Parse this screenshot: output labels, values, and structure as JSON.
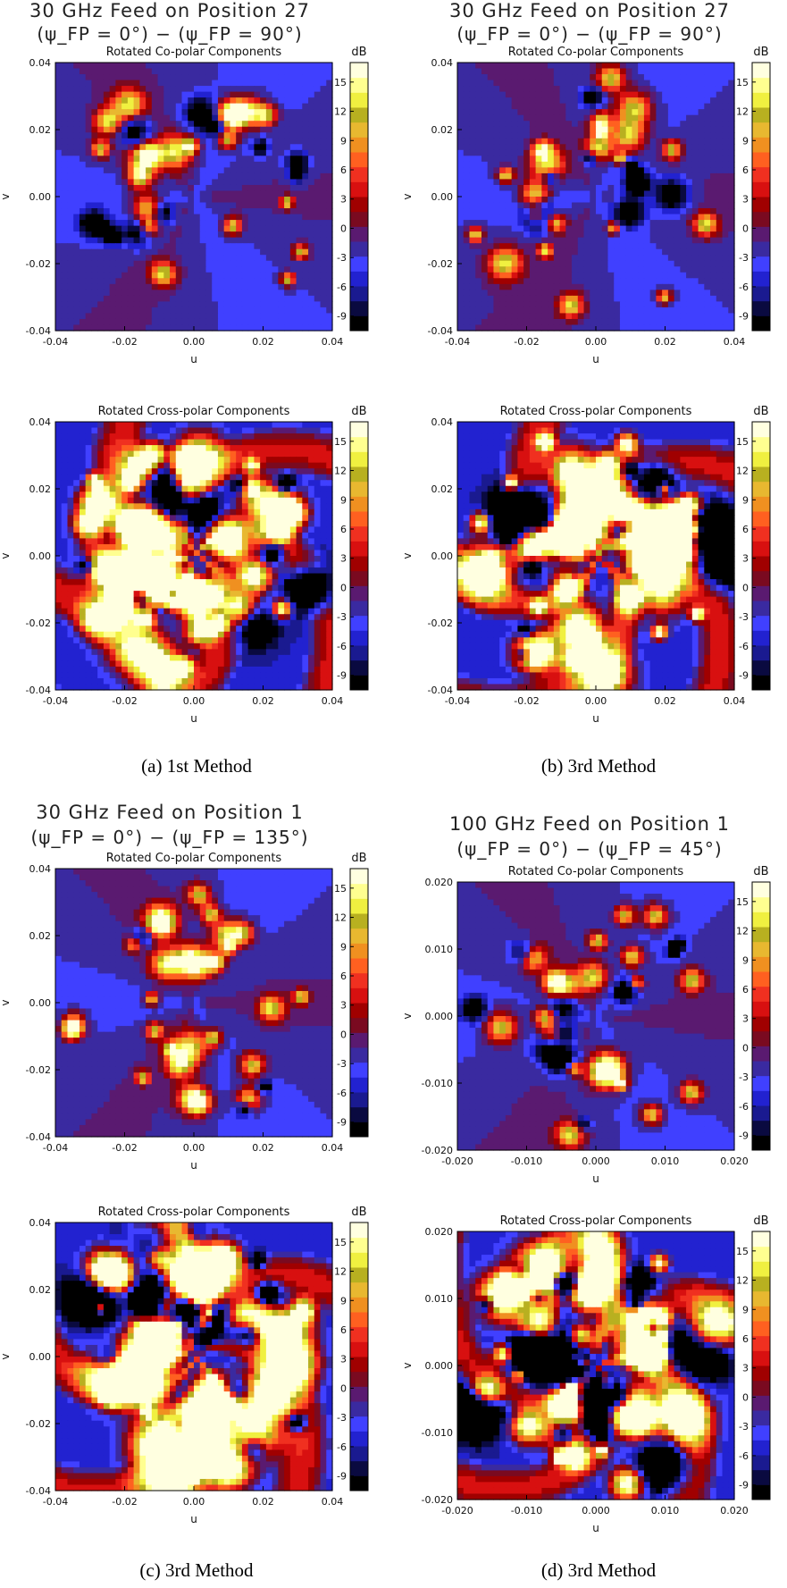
{
  "chart_data": [
    {
      "type": "heatmap",
      "panel": "a",
      "caption": "(a)  1st Method",
      "title_line1": "30 GHz Feed on Position 27",
      "title_line2": "(ψ_FP = 0°) − (ψ_FP = 90°)",
      "colorbar_label": "dB",
      "colorbar_ticks": [
        "15",
        "12",
        "9",
        "6",
        "3",
        "0",
        "-3",
        "-6",
        "-9"
      ],
      "subplots": [
        {
          "title": "Rotated Co-polar Components",
          "xlabel": "u",
          "ylabel": "v",
          "xlim": [
            -0.04,
            0.04
          ],
          "ylim": [
            -0.04,
            0.04
          ],
          "xticks": [
            "-0.04",
            "-0.02",
            "0.00",
            "0.02",
            "0.04"
          ],
          "yticks": [
            "0.04",
            "0.02",
            "0.00",
            "-0.02",
            "-0.04"
          ]
        },
        {
          "title": "Rotated Cross-polar Components",
          "xlabel": "u",
          "ylabel": "v",
          "xlim": [
            -0.04,
            0.04
          ],
          "ylim": [
            -0.04,
            0.04
          ],
          "xticks": [
            "-0.04",
            "-0.02",
            "0.00",
            "0.02",
            "0.04"
          ],
          "yticks": [
            "0.04",
            "0.02",
            "0.00",
            "-0.02",
            "-0.04"
          ]
        }
      ]
    },
    {
      "type": "heatmap",
      "panel": "b",
      "caption": "(b)  3rd Method",
      "title_line1": "30 GHz Feed on Position 27",
      "title_line2": "(ψ_FP = 0°) − (ψ_FP = 90°)",
      "colorbar_label": "dB",
      "colorbar_ticks": [
        "15",
        "12",
        "9",
        "6",
        "3",
        "0",
        "-3",
        "-6",
        "-9"
      ],
      "subplots": [
        {
          "title": "Rotated Co-polar Components",
          "xlabel": "u",
          "ylabel": "v",
          "xlim": [
            -0.04,
            0.04
          ],
          "ylim": [
            -0.04,
            0.04
          ],
          "xticks": [
            "-0.04",
            "-0.02",
            "0.00",
            "0.02",
            "0.04"
          ],
          "yticks": [
            "0.04",
            "0.02",
            "0.00",
            "-0.02",
            "-0.04"
          ]
        },
        {
          "title": "Rotated Cross-polar Components",
          "xlabel": "u",
          "ylabel": "v",
          "xlim": [
            -0.04,
            0.04
          ],
          "ylim": [
            -0.04,
            0.04
          ],
          "xticks": [
            "-0.04",
            "-0.02",
            "0.00",
            "0.02",
            "0.04"
          ],
          "yticks": [
            "0.04",
            "0.02",
            "0.00",
            "-0.02",
            "-0.04"
          ]
        }
      ]
    },
    {
      "type": "heatmap",
      "panel": "c",
      "caption": "(c)  3rd Method",
      "title_line1": "30 GHz Feed on Position 1",
      "title_line2": "(ψ_FP = 0°) − (ψ_FP = 135°)",
      "colorbar_label": "dB",
      "colorbar_ticks": [
        "15",
        "12",
        "9",
        "6",
        "3",
        "0",
        "-3",
        "-6",
        "-9"
      ],
      "subplots": [
        {
          "title": "Rotated Co-polar Components",
          "xlabel": "u",
          "ylabel": "v",
          "xlim": [
            -0.04,
            0.04
          ],
          "ylim": [
            -0.04,
            0.04
          ],
          "xticks": [
            "-0.04",
            "-0.02",
            "0.00",
            "0.02",
            "0.04"
          ],
          "yticks": [
            "0.04",
            "0.02",
            "0.00",
            "-0.02",
            "-0.04"
          ]
        },
        {
          "title": "Rotated Cross-polar Components",
          "xlabel": "u",
          "ylabel": "v",
          "xlim": [
            -0.04,
            0.04
          ],
          "ylim": [
            -0.04,
            0.04
          ],
          "xticks": [
            "-0.04",
            "-0.02",
            "0.00",
            "0.02",
            "0.04"
          ],
          "yticks": [
            "0.04",
            "0.02",
            "0.00",
            "-0.02",
            "-0.04"
          ]
        }
      ]
    },
    {
      "type": "heatmap",
      "panel": "d",
      "caption": "(d)  3rd Method",
      "title_line1": "100 GHz Feed on Position 1",
      "title_line2": "(ψ_FP = 0°) − (ψ_FP = 45°)",
      "colorbar_label": "dB",
      "colorbar_ticks": [
        "15",
        "12",
        "9",
        "6",
        "3",
        "0",
        "-3",
        "-6",
        "-9"
      ],
      "subplots": [
        {
          "title": "Rotated Co-polar Components",
          "xlabel": "u",
          "ylabel": "v",
          "xlim": [
            -0.02,
            0.02
          ],
          "ylim": [
            -0.02,
            0.02
          ],
          "xticks": [
            "-0.020",
            "-0.010",
            "0.000",
            "0.010",
            "0.020"
          ],
          "yticks": [
            "0.020",
            "0.010",
            "0.000",
            "-0.010",
            "-0.020"
          ]
        },
        {
          "title": "Rotated Cross-polar Components",
          "xlabel": "u",
          "ylabel": "v",
          "xlim": [
            -0.02,
            0.02
          ],
          "ylim": [
            -0.02,
            0.02
          ],
          "xticks": [
            "-0.020",
            "-0.010",
            "0.000",
            "0.010",
            "0.020"
          ],
          "yticks": [
            "0.020",
            "0.010",
            "0.000",
            "-0.010",
            "-0.020"
          ]
        }
      ]
    }
  ],
  "colorscale": [
    "#000000",
    "#0a0a40",
    "#1a1a90",
    "#2222d0",
    "#4040ff",
    "#3a2aa0",
    "#5a1a70",
    "#7a0a20",
    "#a00000",
    "#d81010",
    "#f03020",
    "#ff6020",
    "#f09020",
    "#e8b830",
    "#b8b020",
    "#f0f040",
    "#ffff90",
    "#ffffe0"
  ]
}
